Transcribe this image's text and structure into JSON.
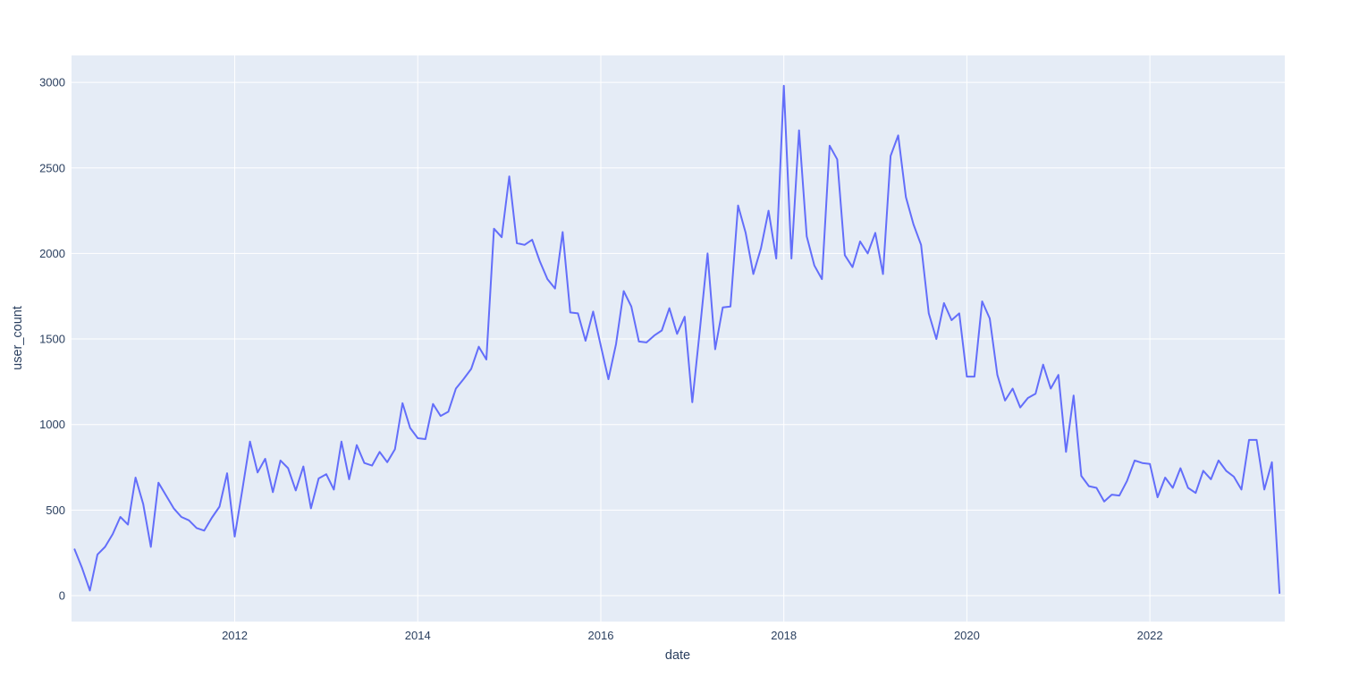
{
  "chart_data": {
    "type": "line",
    "title": "",
    "xlabel": "date",
    "ylabel": "user_count",
    "series": [
      {
        "name": "user_count",
        "start_month": "2010-04",
        "frequency": "monthly",
        "values": [
          270,
          160,
          30,
          240,
          285,
          360,
          460,
          415,
          690,
          535,
          285,
          660,
          585,
          510,
          460,
          440,
          395,
          380,
          455,
          520,
          715,
          345,
          620,
          900,
          720,
          800,
          605,
          790,
          745,
          615,
          755,
          510,
          685,
          710,
          620,
          900,
          680,
          880,
          775,
          760,
          840,
          780,
          855,
          1125,
          980,
          920,
          915,
          1120,
          1050,
          1075,
          1210,
          1265,
          1325,
          1455,
          1380,
          2145,
          2095,
          2450,
          2060,
          2050,
          2080,
          1955,
          1850,
          1795,
          2125,
          1655,
          1650,
          1490,
          1660,
          1460,
          1265,
          1470,
          1780,
          1690,
          1485,
          1480,
          1520,
          1550,
          1680,
          1530,
          1630,
          1130,
          1560,
          2000,
          1440,
          1685,
          1690,
          2280,
          2120,
          1880,
          2030,
          2250,
          1970,
          2980,
          1970,
          2720,
          2100,
          1930,
          1850,
          2630,
          2550,
          1990,
          1920,
          2070,
          2000,
          2120,
          1880,
          2570,
          2690,
          2330,
          2170,
          2050,
          1650,
          1500,
          1710,
          1610,
          1650,
          1280,
          1280,
          1720,
          1620,
          1290,
          1140,
          1210,
          1100,
          1155,
          1180,
          1350,
          1210,
          1290,
          840,
          1170,
          700,
          640,
          630,
          550,
          590,
          585,
          670,
          790,
          775,
          770,
          575,
          690,
          630,
          745,
          630,
          600,
          730,
          680,
          790,
          730,
          695,
          620,
          910,
          910,
          620,
          780,
          15
        ]
      }
    ],
    "x_ticks": [
      {
        "label": "2012",
        "month_index": 21
      },
      {
        "label": "2014",
        "month_index": 45
      },
      {
        "label": "2016",
        "month_index": 69
      },
      {
        "label": "2018",
        "month_index": 93
      },
      {
        "label": "2020",
        "month_index": 117
      },
      {
        "label": "2022",
        "month_index": 141
      }
    ],
    "y_ticks": [
      {
        "label": "0",
        "value": 0
      },
      {
        "label": "500",
        "value": 500
      },
      {
        "label": "1000",
        "value": 1000
      },
      {
        "label": "1500",
        "value": 1500
      },
      {
        "label": "2000",
        "value": 2000
      },
      {
        "label": "2500",
        "value": 2500
      },
      {
        "label": "3000",
        "value": 3000
      }
    ],
    "ylim_data": [
      0,
      2980
    ],
    "grid": true,
    "legend": "none",
    "colors": {
      "line": "#636efa",
      "plot_background": "#e5ecf6",
      "gridline": "#ffffff",
      "tick_text": "#2a3f5f",
      "paper_background": "#ffffff"
    }
  }
}
